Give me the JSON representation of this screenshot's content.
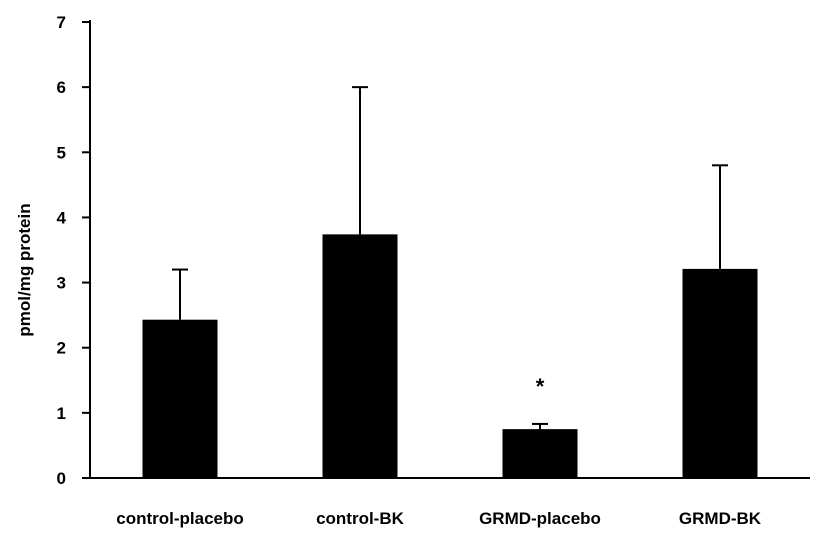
{
  "chart_data": {
    "type": "bar",
    "title": "",
    "xlabel": "",
    "ylabel": "pmol/mg protein",
    "ylim": [
      0,
      7
    ],
    "yticks": [
      "0",
      "1",
      "2",
      "3",
      "4",
      "5",
      "6",
      "7"
    ],
    "grid": false,
    "categories": [
      "control-placebo",
      "control-BK",
      "GRMD-placebo",
      "GRMD-BK"
    ],
    "series": [
      {
        "values": [
          2.43,
          3.74,
          0.75,
          3.21
        ],
        "error_upper": [
          3.2,
          6.0,
          0.83,
          4.8
        ],
        "color": "#000000"
      }
    ],
    "annotations": [
      {
        "category": "GRMD-placebo",
        "text": "*"
      }
    ]
  }
}
